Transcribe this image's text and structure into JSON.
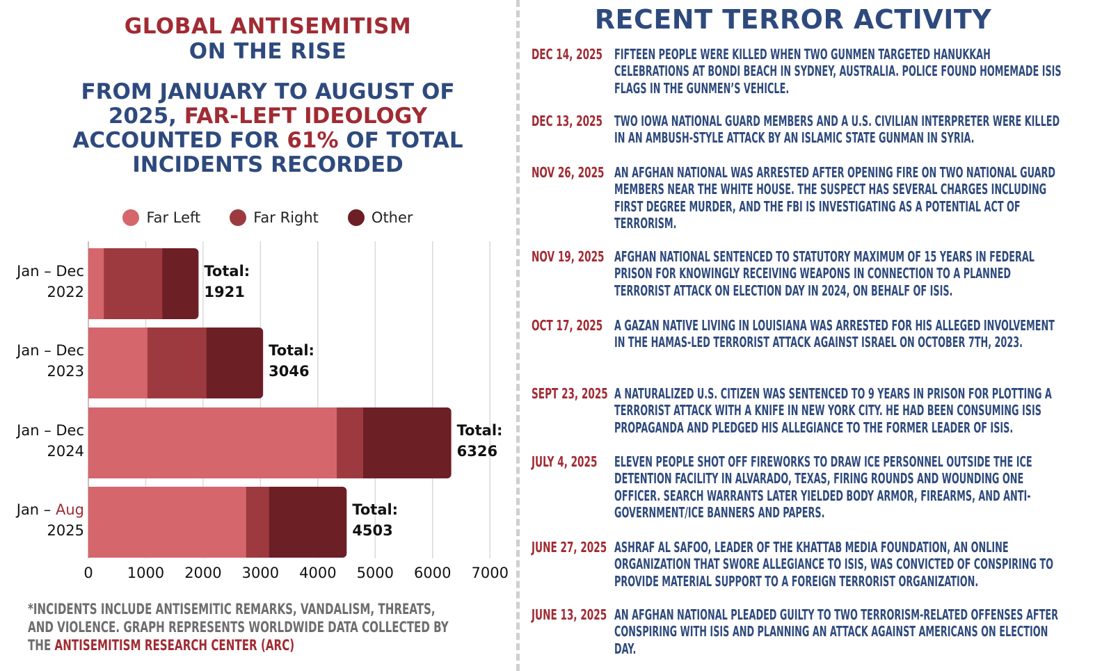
{
  "left": {
    "title_line1": "GLOBAL ANTISEMITISM",
    "title_line2": "ON THE RISE",
    "headline": {
      "part1": "FROM JANUARY TO AUGUST OF 2025, ",
      "highlight1": "FAR-LEFT IDEOLOGY",
      "part2": " ACCOUNTED FOR ",
      "highlight2": "61%",
      "part3": " OF TOTAL INCIDENTS RECORDED"
    },
    "footnote": {
      "text": "*INCIDENTS INCLUDE ANTISEMITIC REMARKS, VANDALISM, THREATS, AND VIOLENCE. GRAPH REPRESENTS WORLDWIDE DATA COLLECTED BY THE ",
      "source": "ANTISEMITISM RESEARCH CENTER (ARC)"
    }
  },
  "colors": {
    "far_left": "#d5666c",
    "far_right": "#9c3a40",
    "other": "#6c1f25",
    "accent_red": "#a12b33",
    "accent_blue": "#2e4a7d"
  },
  "chart_data": {
    "type": "bar",
    "orientation": "horizontal",
    "stacked": true,
    "categories": [
      {
        "line1": "Jan – Dec",
        "line1_highlight": "",
        "line2": "2022"
      },
      {
        "line1": "Jan – Dec",
        "line1_highlight": "",
        "line2": "2023"
      },
      {
        "line1": "Jan – Dec",
        "line1_highlight": "",
        "line2": "2024"
      },
      {
        "line1": "Jan – ",
        "line1_highlight": "Aug",
        "line2": "2025"
      }
    ],
    "series": [
      {
        "name": "Far Left",
        "color": "#d5666c",
        "values": [
          270,
          1030,
          4330,
          2750
        ]
      },
      {
        "name": "Far Right",
        "color": "#9c3a40",
        "values": [
          1020,
          1030,
          460,
          400
        ]
      },
      {
        "name": "Other",
        "color": "#6c1f25",
        "values": [
          631,
          986,
          1536,
          1353
        ]
      }
    ],
    "total_label": "Total:",
    "totals": [
      "1921",
      "3046",
      "6326",
      "4503"
    ],
    "xlim": [
      0,
      7000
    ],
    "xticks": [
      "0",
      "1000",
      "2000",
      "3000",
      "4000",
      "5000",
      "6000",
      "7000"
    ],
    "grid": "vertical",
    "legend_position": "top"
  },
  "right": {
    "title": "RECENT TERROR ACTIVITY",
    "events": [
      {
        "date": "DEC 14, 2025",
        "text": "Fifteen people were killed when two gunmen targeted Hanukkah celebrations at Bondi Beach in Sydney, Australia. Police found homemade ISIS flags in the gunmen’s vehicle."
      },
      {
        "date": "DEC 13, 2025",
        "text": "Two Iowa National Guard members and a U.S. civilian interpreter were killed in an ambush-style attack by an Islamic State gunman in Syria."
      },
      {
        "date": "NOV 26, 2025",
        "text": "An Afghan national was arrested after opening fire on two National Guard members near the White House. The suspect has several charges including first degree murder, and the FBI is investigating as a potential act of terrorism."
      },
      {
        "date": "NOV 19, 2025",
        "text": "Afghan national sentenced to statutory maximum of 15 years in federal prison for knowingly receiving weapons in connection to a planned terrorist attack on Election Day in 2024, on behalf of ISIS."
      },
      {
        "date": "OCT 17, 2025",
        "text": "A Gazan native living in Louisiana was arrested for his alleged involvement in the Hamas-led terrorist attack against Israel on October 7th, 2023."
      },
      {
        "date": "SEPT 23, 2025",
        "text": "A naturalized U.S. citizen was sentenced to 9 years in prison for plotting a terrorist attack with a knife in New York City. He had been consuming ISIS propaganda and pledged his allegiance to the former leader of ISIS."
      },
      {
        "date": "JULY 4, 2025",
        "text": "Eleven people shot off fireworks to draw ICE personnel outside the ICE detention facility in Alvarado, Texas, firing rounds and wounding one officer. Search warrants later yielded body armor, firearms, and anti-government/ICE banners and papers."
      },
      {
        "date": "JUNE 27, 2025",
        "text": "Ashraf Al Safoo, leader of the Khattab Media Foundation, an online organization that swore allegiance to ISIS, was convicted of conspiring to provide material support to a foreign terrorist organization."
      },
      {
        "date": "JUNE 13, 2025",
        "text": "An Afghan national pleaded guilty to two terrorism-related offenses after conspiring with ISIS and planning an attack against Americans on Election Day."
      }
    ]
  }
}
